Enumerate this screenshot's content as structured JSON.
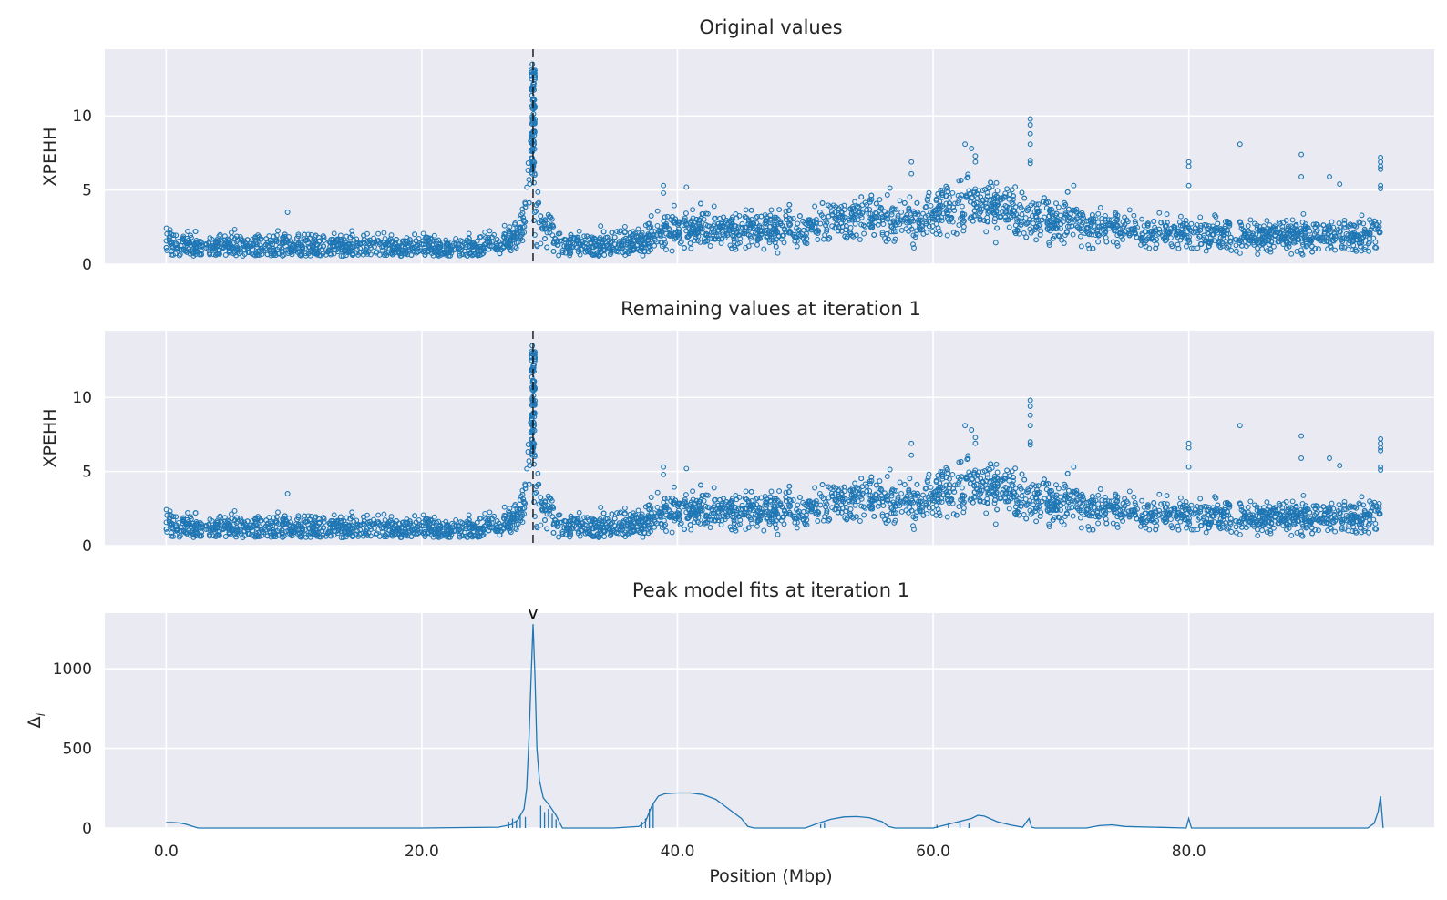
{
  "chart_data": [
    {
      "type": "scatter",
      "title": "Original values",
      "ylabel": "XPEHH",
      "xlabel": "",
      "xlim": [
        -4.8,
        99.2
      ],
      "ylim": [
        0,
        14.5
      ],
      "yticks": [
        0,
        5,
        10
      ],
      "ytick_labels": [
        "0",
        "5",
        "10"
      ],
      "xticks": [
        0,
        20,
        40,
        60,
        80
      ],
      "grid": true,
      "peak_marker": {
        "x": 28.7,
        "style": "dashed vertical line"
      },
      "series": [
        {
          "color": "#1f77b4",
          "marker": "open circle",
          "profile": [
            [
              0,
              1.6
            ],
            [
              1,
              1.3
            ],
            [
              2,
              1.2
            ],
            [
              5,
              1.2
            ],
            [
              10,
              1.2
            ],
            [
              15,
              1.15
            ],
            [
              20,
              1.15
            ],
            [
              22,
              1.1
            ],
            [
              24,
              1.1
            ],
            [
              25.5,
              1.3
            ],
            [
              26.5,
              1.5
            ],
            [
              27.5,
              1.9
            ],
            [
              28,
              2.8
            ],
            [
              28.4,
              6
            ],
            [
              28.7,
              9.5
            ],
            [
              29,
              4
            ],
            [
              29.3,
              2.8
            ],
            [
              30,
              2.4
            ],
            [
              30.5,
              1.6
            ],
            [
              31.5,
              1.3
            ],
            [
              35,
              1.3
            ],
            [
              37,
              1.6
            ],
            [
              38,
              1.9
            ],
            [
              39,
              2.2
            ],
            [
              40,
              2.4
            ],
            [
              42,
              2.6
            ],
            [
              45,
              2.3
            ],
            [
              48,
              2.3
            ],
            [
              50,
              2.6
            ],
            [
              52,
              3.0
            ],
            [
              55,
              3.4
            ],
            [
              57,
              3.1
            ],
            [
              59,
              3.0
            ],
            [
              60,
              3.4
            ],
            [
              62,
              3.9
            ],
            [
              63,
              4.3
            ],
            [
              64,
              4.0
            ],
            [
              66,
              3.5
            ],
            [
              68,
              3.0
            ],
            [
              70,
              2.9
            ],
            [
              72,
              2.6
            ],
            [
              75,
              2.4
            ],
            [
              77,
              2.0
            ],
            [
              80,
              2.0
            ],
            [
              85,
              1.9
            ],
            [
              90,
              2.0
            ],
            [
              94,
              1.9
            ],
            [
              95,
              2.2
            ]
          ],
          "outliers": [
            [
              9.5,
              3.5
            ],
            [
              38.9,
              5.3
            ],
            [
              38.9,
              4.8
            ],
            [
              40.7,
              5.2
            ],
            [
              58.3,
              6.9
            ],
            [
              58.3,
              6.1
            ],
            [
              62.5,
              8.1
            ],
            [
              63,
              7.8
            ],
            [
              63.3,
              7.3
            ],
            [
              63.3,
              6.9
            ],
            [
              67.6,
              9.8
            ],
            [
              67.6,
              9.4
            ],
            [
              67.6,
              8.8
            ],
            [
              67.6,
              8.1
            ],
            [
              67.6,
              7.0
            ],
            [
              67.6,
              6.8
            ],
            [
              71,
              5.3
            ],
            [
              80,
              6.9
            ],
            [
              80,
              6.6
            ],
            [
              80,
              5.3
            ],
            [
              84,
              8.1
            ],
            [
              88.8,
              7.4
            ],
            [
              88.8,
              5.9
            ],
            [
              91,
              5.9
            ],
            [
              91.8,
              5.4
            ],
            [
              95,
              7.2
            ],
            [
              95,
              6.9
            ],
            [
              95,
              6.6
            ],
            [
              95,
              6.4
            ],
            [
              95,
              5.3
            ],
            [
              95,
              5.1
            ]
          ]
        }
      ]
    },
    {
      "type": "scatter",
      "title": "Remaining values at iteration 1",
      "ylabel": "XPEHH",
      "xlabel": "",
      "xlim": [
        -4.8,
        99.2
      ],
      "ylim": [
        0,
        14.5
      ],
      "yticks": [
        0,
        5,
        10
      ],
      "ytick_labels": [
        "0",
        "5",
        "10"
      ],
      "xticks": [
        0,
        20,
        40,
        60,
        80
      ],
      "grid": true,
      "peak_marker": {
        "x": 28.7,
        "style": "dashed vertical line"
      },
      "series": [
        {
          "color": "#1f77b4",
          "marker": "open circle",
          "same_as_panel": 0
        }
      ]
    },
    {
      "type": "line",
      "title": "Peak model fits at iteration 1",
      "ylabel": "Δ",
      "ylabel_subscript": "i",
      "xlabel": "Position (Mbp)",
      "xlim": [
        -4.8,
        99.2
      ],
      "ylim": [
        0,
        1350
      ],
      "yticks": [
        0,
        500,
        1000
      ],
      "ytick_labels": [
        "0",
        "500",
        "1000"
      ],
      "xticks": [
        0,
        20,
        40,
        60,
        80
      ],
      "xtick_labels": [
        "0.0",
        "20.0",
        "40.0",
        "60.0",
        "80.0"
      ],
      "grid": true,
      "peak_annotation": {
        "x": 28.7,
        "text": "v"
      },
      "series": [
        {
          "color": "#1f77b4",
          "x": [
            0,
            0.5,
            1,
            1.5,
            2,
            2.5,
            20,
            26,
            27,
            27.5,
            28,
            28.2,
            28.4,
            28.55,
            28.7,
            28.85,
            29,
            29.2,
            29.5,
            30,
            30.5,
            31,
            35,
            37,
            37.5,
            38,
            38.5,
            39,
            40,
            41,
            42,
            43,
            44,
            45,
            45.5,
            46,
            50,
            51,
            52,
            53,
            54,
            55,
            56,
            56.5,
            57,
            60,
            61,
            62,
            63,
            63.5,
            64,
            65,
            66,
            67,
            67.5,
            67.7,
            68,
            72,
            73,
            74,
            75,
            79.8,
            80,
            80.2,
            81,
            94,
            94.5,
            94.8,
            95,
            95.2
          ],
          "y": [
            35,
            35,
            32,
            25,
            12,
            0,
            0,
            5,
            22,
            50,
            120,
            250,
            600,
            950,
            1280,
            950,
            500,
            300,
            190,
            140,
            80,
            0,
            0,
            10,
            40,
            140,
            200,
            215,
            220,
            220,
            210,
            180,
            120,
            60,
            10,
            0,
            0,
            30,
            55,
            70,
            72,
            65,
            40,
            10,
            0,
            0,
            20,
            40,
            60,
            80,
            75,
            40,
            20,
            5,
            60,
            5,
            0,
            0,
            15,
            20,
            10,
            0,
            60,
            0,
            0,
            0,
            30,
            100,
            200,
            0
          ]
        }
      ],
      "spikes": [
        [
          26.8,
          40
        ],
        [
          27.1,
          60
        ],
        [
          27.4,
          45
        ],
        [
          27.7,
          80
        ],
        [
          28.1,
          70
        ],
        [
          29.3,
          140
        ],
        [
          29.6,
          100
        ],
        [
          29.9,
          120
        ],
        [
          30.2,
          90
        ],
        [
          30.5,
          55
        ],
        [
          37.2,
          40
        ],
        [
          37.5,
          60
        ],
        [
          37.8,
          120
        ],
        [
          38.1,
          150
        ],
        [
          51.2,
          25
        ],
        [
          51.5,
          35
        ],
        [
          60.3,
          20
        ],
        [
          61.2,
          35
        ],
        [
          62.1,
          40
        ],
        [
          62.8,
          30
        ]
      ]
    }
  ]
}
